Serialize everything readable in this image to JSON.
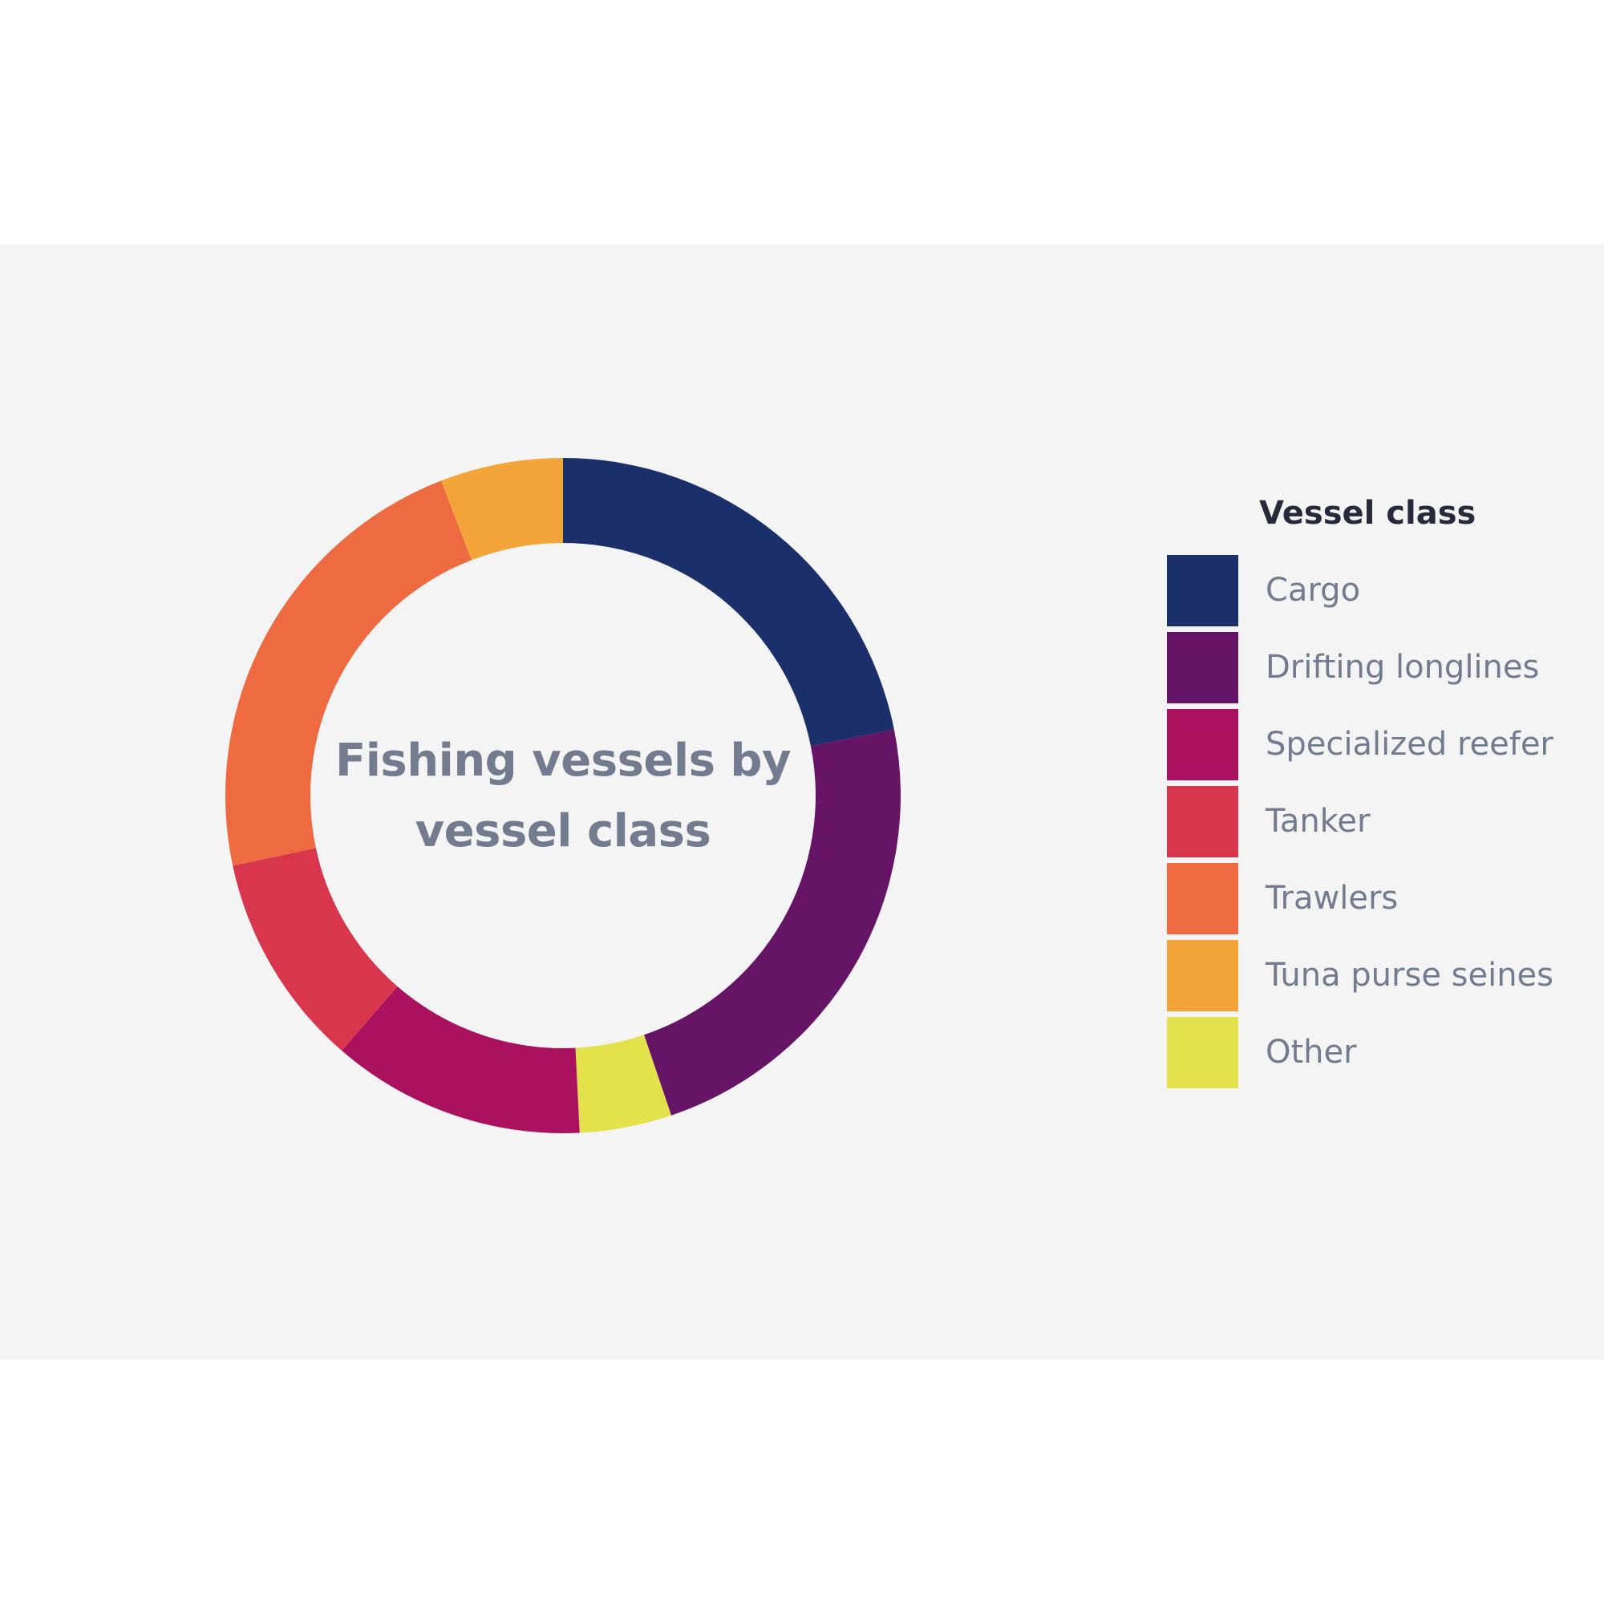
{
  "chart_data": {
    "type": "pie",
    "donut": true,
    "title": "Fishing vessels by vessel class",
    "title_lines": [
      "Fishing vessels by",
      "vessel class"
    ],
    "legend": {
      "title": "Vessel class",
      "placement": "right"
    },
    "categories": [
      "Cargo",
      "Drifting longlines",
      "Specialized reefer",
      "Tanker",
      "Trawlers",
      "Tuna purse seines",
      "Other"
    ],
    "values": [
      22.3,
      23.4,
      12.4,
      10.5,
      22.9,
      6.0,
      4.5
    ],
    "slice_order": [
      0,
      1,
      6,
      2,
      3,
      4,
      5
    ],
    "colors": [
      "#1b2f6b",
      "#661465",
      "#aa115e",
      "#d8364c",
      "#ee6a40",
      "#f4a53a",
      "#e4e24c"
    ]
  }
}
